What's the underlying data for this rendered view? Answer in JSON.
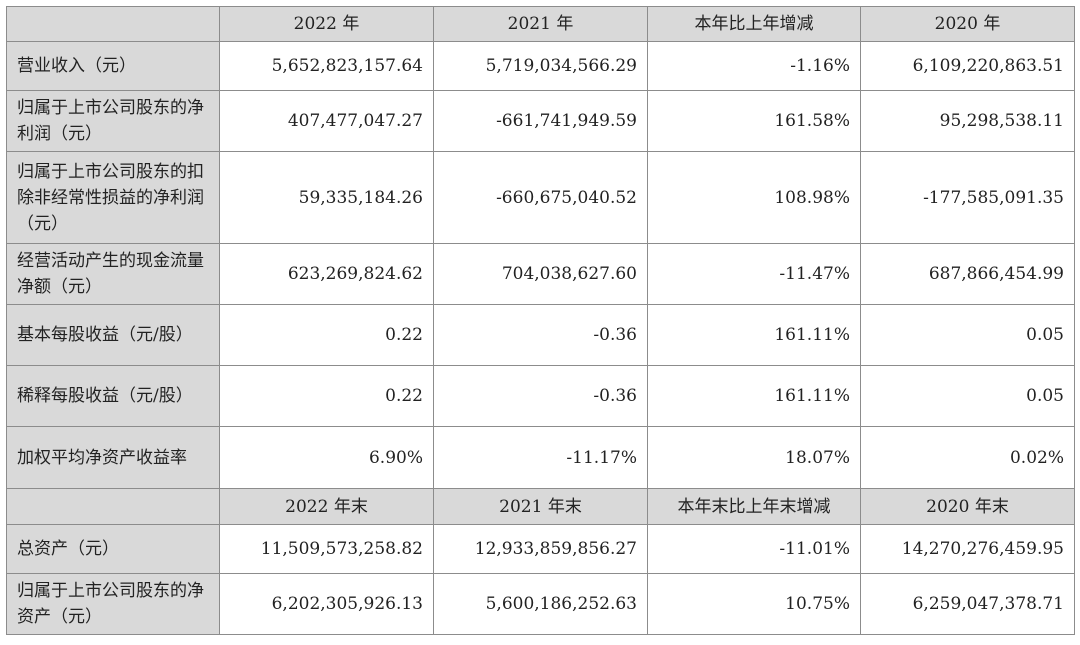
{
  "header1": [
    "2022 年",
    "2021 年",
    "本年比上年增减",
    "2020 年"
  ],
  "rows1": [
    {
      "label": "营业收入（元）",
      "values": [
        "5,652,823,157.64",
        "5,719,034,566.29",
        "-1.16%",
        "6,109,220,863.51"
      ]
    },
    {
      "label": "归属于上市公司股东的净利润（元）",
      "values": [
        "407,477,047.27",
        "-661,741,949.59",
        "161.58%",
        "95,298,538.11"
      ]
    },
    {
      "label": "归属于上市公司股东的扣除非经常性损益的净利润（元）",
      "values": [
        "59,335,184.26",
        "-660,675,040.52",
        "108.98%",
        "-177,585,091.35"
      ]
    },
    {
      "label": "经营活动产生的现金流量净额（元）",
      "values": [
        "623,269,824.62",
        "704,038,627.60",
        "-11.47%",
        "687,866,454.99"
      ]
    },
    {
      "label": "基本每股收益（元/股）",
      "values": [
        "0.22",
        "-0.36",
        "161.11%",
        "0.05"
      ]
    },
    {
      "label": "稀释每股收益（元/股）",
      "values": [
        "0.22",
        "-0.36",
        "161.11%",
        "0.05"
      ]
    },
    {
      "label": "加权平均净资产收益率",
      "values": [
        "6.90%",
        "-11.17%",
        "18.07%",
        "0.02%"
      ]
    }
  ],
  "header2": [
    "2022 年末",
    "2021 年末",
    "本年末比上年末增减",
    "2020 年末"
  ],
  "rows2": [
    {
      "label": "总资产（元）",
      "values": [
        "11,509,573,258.82",
        "12,933,859,856.27",
        "-11.01%",
        "14,270,276,459.95"
      ]
    },
    {
      "label": "归属于上市公司股东的净资产（元）",
      "values": [
        "6,202,305,926.13",
        "5,600,186,252.63",
        "10.75%",
        "6,259,047,378.71"
      ]
    }
  ]
}
